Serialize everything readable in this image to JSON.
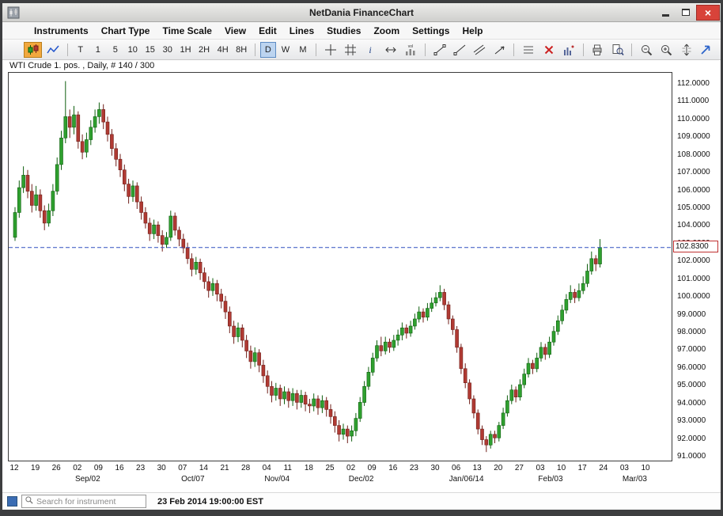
{
  "window": {
    "title": "NetDania FinanceChart"
  },
  "menu": {
    "items": [
      "Instruments",
      "Chart Type",
      "Time Scale",
      "View",
      "Edit",
      "Lines",
      "Studies",
      "Zoom",
      "Settings",
      "Help"
    ]
  },
  "toolbar": {
    "chart_types": [
      {
        "name": "candlestick-chart",
        "selected": true
      },
      {
        "name": "line-chart",
        "selected": false
      }
    ],
    "intervals": [
      {
        "label": "T"
      },
      {
        "label": "1"
      },
      {
        "label": "5"
      },
      {
        "label": "10"
      },
      {
        "label": "15"
      },
      {
        "label": "30"
      },
      {
        "label": "1H"
      },
      {
        "label": "2H"
      },
      {
        "label": "4H"
      },
      {
        "label": "8H"
      },
      {
        "label": "D",
        "selected": true
      },
      {
        "label": "W"
      },
      {
        "label": "M"
      }
    ],
    "selected_interval": "D",
    "tool_groups": [
      [
        "crosshair",
        "grid",
        "info",
        "horizontal-scroll",
        "volume"
      ],
      [
        "trend-line",
        "ray-line",
        "channel",
        "arrow-line"
      ],
      [
        "horizontal-lines",
        "delete",
        "studies"
      ],
      [
        "print",
        "print-preview"
      ],
      [
        "zoom-out",
        "zoom-in",
        "vertical-scale"
      ]
    ],
    "pin": "pin-panel"
  },
  "colors": {
    "candle_up": "#2fa02f",
    "candle_up_border": "#0f5f0f",
    "candle_down": "#b03a33",
    "candle_down_border": "#701f1a",
    "dashed_line": "#3050c0",
    "price_marker_border": "#c03030",
    "selected_interval_bg": "#bcd4f0",
    "selected_charttype_bg": "#f2a83e",
    "close_button": "#d8433a",
    "instrument_swatch": "#3a6cb3"
  },
  "chart_data": {
    "type": "candlestick",
    "instrument_label": "WTI Crude 1. pos. , Daily, # 140 / 300",
    "instrument": "WTI Crude 1. pos.",
    "timeframe": "Daily",
    "bars_shown": 140,
    "bars_total": 300,
    "last_close": 102.83,
    "price_marker_label": "102.8300",
    "y_axis": {
      "max_price": 112.67,
      "min_price": 90.82,
      "tick_step": 1.0,
      "tick_labels": [
        "112.0000",
        "111.0000",
        "110.0000",
        "109.0000",
        "108.0000",
        "107.0000",
        "106.0000",
        "105.0000",
        "104.0000",
        "103.0000",
        "102.0000",
        "101.0000",
        "100.0000",
        "99.0000",
        "98.0000",
        "97.0000",
        "96.0000",
        "95.0000",
        "94.0000",
        "93.0000",
        "92.0000",
        "91.0000"
      ]
    },
    "x_axis": {
      "week_tick_labels": [
        "12",
        "19",
        "26",
        "02",
        "09",
        "16",
        "23",
        "30",
        "07",
        "14",
        "21",
        "28",
        "04",
        "11",
        "18",
        "25",
        "02",
        "09",
        "16",
        "23",
        "30",
        "06",
        "13",
        "20",
        "27",
        "03",
        "10",
        "17",
        "24",
        "03",
        "10"
      ],
      "month_labels": [
        {
          "label": "Sep/02",
          "week": 3
        },
        {
          "label": "Oct/07",
          "week": 8
        },
        {
          "label": "Nov/04",
          "week": 12
        },
        {
          "label": "Dec/02",
          "week": 16
        },
        {
          "label": "Jan/06/14",
          "week": 21
        },
        {
          "label": "Feb/03",
          "week": 25
        },
        {
          "label": "Mar/03",
          "week": 29
        }
      ]
    },
    "ohlc": [
      [
        103.4,
        105.1,
        103.2,
        104.8
      ],
      [
        104.8,
        106.6,
        104.5,
        106.2
      ],
      [
        106.2,
        107.4,
        105.9,
        106.9
      ],
      [
        106.9,
        107.2,
        105.6,
        106.0
      ],
      [
        106.0,
        106.4,
        104.8,
        105.2
      ],
      [
        105.2,
        106.3,
        104.9,
        105.8
      ],
      [
        105.8,
        106.1,
        104.5,
        104.9
      ],
      [
        104.9,
        105.2,
        103.8,
        104.2
      ],
      [
        104.2,
        105.3,
        104.0,
        104.9
      ],
      [
        104.9,
        106.4,
        104.6,
        106.0
      ],
      [
        106.0,
        107.9,
        105.8,
        107.5
      ],
      [
        107.5,
        109.4,
        107.2,
        109.0
      ],
      [
        109.0,
        112.2,
        108.7,
        110.2
      ],
      [
        110.2,
        110.6,
        109.0,
        109.6
      ],
      [
        109.6,
        110.8,
        109.2,
        110.3
      ],
      [
        110.3,
        110.5,
        108.4,
        108.8
      ],
      [
        108.8,
        109.2,
        107.8,
        108.2
      ],
      [
        108.2,
        109.3,
        107.9,
        108.9
      ],
      [
        108.9,
        110.0,
        108.6,
        109.6
      ],
      [
        109.6,
        110.6,
        109.3,
        110.2
      ],
      [
        110.2,
        111.0,
        109.8,
        110.6
      ],
      [
        110.6,
        110.9,
        109.5,
        109.9
      ],
      [
        109.9,
        110.2,
        108.8,
        109.2
      ],
      [
        109.2,
        109.5,
        108.0,
        108.4
      ],
      [
        108.4,
        108.7,
        107.4,
        107.8
      ],
      [
        107.8,
        108.1,
        106.8,
        107.2
      ],
      [
        107.2,
        107.5,
        106.0,
        106.4
      ],
      [
        106.4,
        106.7,
        105.3,
        105.7
      ],
      [
        105.7,
        106.6,
        105.4,
        106.3
      ],
      [
        106.3,
        106.5,
        105.0,
        105.4
      ],
      [
        105.4,
        105.7,
        104.4,
        104.8
      ],
      [
        104.8,
        105.1,
        103.9,
        104.2
      ],
      [
        104.2,
        104.5,
        103.2,
        103.6
      ],
      [
        103.6,
        104.4,
        103.3,
        104.1
      ],
      [
        104.1,
        104.3,
        103.1,
        103.5
      ],
      [
        103.5,
        103.8,
        102.6,
        103.0
      ],
      [
        103.0,
        103.7,
        102.8,
        103.4
      ],
      [
        103.4,
        104.9,
        103.2,
        104.6
      ],
      [
        104.6,
        104.8,
        103.5,
        103.8
      ],
      [
        103.8,
        104.0,
        102.9,
        103.3
      ],
      [
        103.3,
        103.6,
        102.5,
        102.8
      ],
      [
        102.8,
        103.1,
        101.9,
        102.2
      ],
      [
        102.2,
        102.5,
        101.2,
        101.6
      ],
      [
        101.6,
        102.3,
        101.3,
        102.0
      ],
      [
        102.0,
        102.2,
        101.0,
        101.4
      ],
      [
        101.4,
        101.7,
        100.5,
        100.9
      ],
      [
        100.9,
        101.2,
        100.0,
        100.4
      ],
      [
        100.4,
        101.1,
        100.1,
        100.8
      ],
      [
        100.8,
        101.0,
        99.8,
        100.2
      ],
      [
        100.2,
        100.5,
        99.4,
        99.8
      ],
      [
        99.8,
        100.1,
        98.8,
        99.2
      ],
      [
        99.2,
        99.5,
        98.0,
        98.4
      ],
      [
        98.4,
        98.7,
        97.4,
        97.8
      ],
      [
        97.8,
        98.6,
        97.5,
        98.3
      ],
      [
        98.3,
        98.5,
        97.2,
        97.6
      ],
      [
        97.6,
        97.9,
        96.6,
        97.0
      ],
      [
        97.0,
        97.3,
        96.0,
        96.4
      ],
      [
        96.4,
        97.2,
        96.1,
        96.9
      ],
      [
        96.9,
        97.1,
        95.8,
        96.2
      ],
      [
        96.2,
        96.5,
        95.2,
        95.6
      ],
      [
        95.6,
        95.9,
        94.6,
        95.0
      ],
      [
        95.0,
        95.3,
        94.1,
        94.5
      ],
      [
        94.5,
        95.2,
        94.2,
        94.9
      ],
      [
        94.9,
        95.1,
        93.9,
        94.3
      ],
      [
        94.3,
        95.0,
        94.0,
        94.7
      ],
      [
        94.7,
        94.9,
        93.8,
        94.2
      ],
      [
        94.2,
        94.9,
        93.9,
        94.6
      ],
      [
        94.6,
        94.8,
        93.7,
        94.1
      ],
      [
        94.1,
        94.8,
        93.8,
        94.5
      ],
      [
        94.5,
        94.7,
        93.6,
        94.0
      ],
      [
        94.0,
        94.3,
        93.5,
        93.9
      ],
      [
        93.9,
        94.6,
        93.6,
        94.3
      ],
      [
        94.3,
        94.5,
        93.4,
        93.8
      ],
      [
        93.8,
        94.5,
        93.5,
        94.2
      ],
      [
        94.2,
        94.4,
        93.3,
        93.7
      ],
      [
        93.7,
        94.0,
        92.9,
        93.3
      ],
      [
        93.3,
        93.6,
        92.4,
        92.8
      ],
      [
        92.8,
        93.1,
        91.9,
        92.3
      ],
      [
        92.3,
        92.9,
        92.0,
        92.6
      ],
      [
        92.6,
        92.8,
        91.8,
        92.2
      ],
      [
        92.2,
        92.8,
        91.9,
        92.5
      ],
      [
        92.5,
        93.5,
        92.2,
        93.2
      ],
      [
        93.2,
        94.4,
        93.0,
        94.1
      ],
      [
        94.1,
        95.3,
        93.9,
        95.0
      ],
      [
        95.0,
        96.1,
        94.8,
        95.8
      ],
      [
        95.8,
        96.9,
        95.6,
        96.6
      ],
      [
        96.6,
        97.6,
        96.4,
        97.3
      ],
      [
        97.3,
        97.8,
        96.7,
        97.0
      ],
      [
        97.0,
        97.8,
        96.8,
        97.5
      ],
      [
        97.5,
        97.7,
        96.9,
        97.2
      ],
      [
        97.2,
        97.9,
        97.0,
        97.6
      ],
      [
        97.6,
        98.2,
        97.3,
        97.9
      ],
      [
        97.9,
        98.6,
        97.6,
        98.3
      ],
      [
        98.3,
        98.5,
        97.7,
        98.0
      ],
      [
        98.0,
        98.7,
        97.8,
        98.4
      ],
      [
        98.4,
        99.1,
        98.2,
        98.8
      ],
      [
        98.8,
        99.5,
        98.6,
        99.2
      ],
      [
        99.2,
        99.4,
        98.6,
        98.9
      ],
      [
        98.9,
        99.7,
        98.7,
        99.4
      ],
      [
        99.4,
        100.0,
        99.2,
        99.7
      ],
      [
        99.7,
        100.3,
        99.5,
        100.0
      ],
      [
        100.0,
        100.7,
        99.8,
        100.3
      ],
      [
        100.3,
        100.5,
        99.3,
        99.6
      ],
      [
        99.6,
        99.8,
        98.5,
        98.8
      ],
      [
        98.8,
        99.0,
        97.9,
        98.2
      ],
      [
        98.2,
        98.4,
        96.9,
        97.2
      ],
      [
        97.2,
        97.4,
        95.7,
        96.0
      ],
      [
        96.0,
        96.3,
        94.9,
        95.2
      ],
      [
        95.2,
        95.4,
        94.0,
        94.3
      ],
      [
        94.3,
        94.5,
        93.2,
        93.5
      ],
      [
        93.5,
        93.7,
        92.3,
        92.6
      ],
      [
        92.6,
        92.8,
        91.7,
        92.0
      ],
      [
        92.0,
        92.2,
        91.3,
        91.7
      ],
      [
        91.7,
        92.5,
        91.5,
        92.3
      ],
      [
        92.3,
        92.5,
        91.8,
        92.1
      ],
      [
        92.1,
        93.0,
        91.9,
        92.8
      ],
      [
        92.8,
        93.8,
        92.6,
        93.5
      ],
      [
        93.5,
        94.5,
        93.3,
        94.2
      ],
      [
        94.2,
        95.1,
        94.0,
        94.8
      ],
      [
        94.8,
        95.0,
        94.1,
        94.4
      ],
      [
        94.4,
        95.4,
        94.2,
        95.1
      ],
      [
        95.1,
        96.0,
        94.9,
        95.7
      ],
      [
        95.7,
        96.6,
        95.5,
        96.3
      ],
      [
        96.3,
        96.5,
        95.7,
        96.0
      ],
      [
        96.0,
        96.9,
        95.8,
        96.6
      ],
      [
        96.6,
        97.5,
        96.4,
        97.2
      ],
      [
        97.2,
        97.4,
        96.5,
        96.8
      ],
      [
        96.8,
        97.8,
        96.6,
        97.5
      ],
      [
        97.5,
        98.4,
        97.3,
        98.1
      ],
      [
        98.1,
        99.0,
        97.9,
        98.7
      ],
      [
        98.7,
        99.6,
        98.5,
        99.3
      ],
      [
        99.3,
        100.2,
        99.1,
        99.9
      ],
      [
        99.9,
        100.7,
        99.7,
        100.3
      ],
      [
        100.3,
        100.5,
        99.7,
        100.0
      ],
      [
        100.0,
        100.8,
        99.8,
        100.4
      ],
      [
        100.4,
        101.2,
        100.2,
        100.8
      ],
      [
        100.8,
        101.9,
        100.6,
        101.5
      ],
      [
        101.5,
        102.6,
        101.3,
        102.2
      ],
      [
        102.2,
        102.4,
        101.5,
        101.9
      ],
      [
        101.9,
        103.3,
        101.7,
        102.83
      ]
    ]
  },
  "statusbar": {
    "search_placeholder": "Search for instrument",
    "timestamp": "23 Feb 2014 19:00:00 EST"
  }
}
